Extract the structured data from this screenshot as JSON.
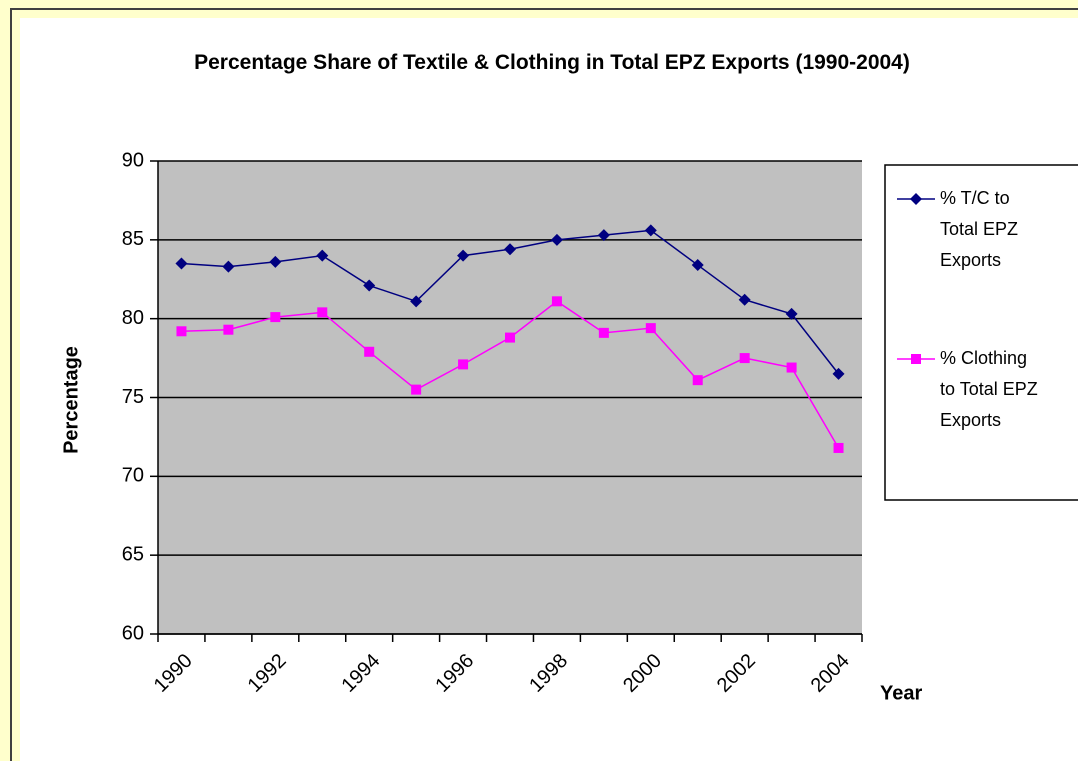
{
  "chart_data": {
    "type": "line",
    "title": "Percentage Share of Textile & Clothing in Total EPZ Exports (1990-2004)",
    "x_label": "Year",
    "y_label": "Percentage",
    "categories": [
      "1990",
      null,
      "1992",
      null,
      "1994",
      null,
      "1996",
      null,
      "1998",
      null,
      "2000",
      null,
      "2002",
      null,
      "2004"
    ],
    "series": [
      {
        "name": "% T/C to Total EPZ Exports",
        "color": "#000080",
        "marker": "diamond",
        "values": [
          83.5,
          83.3,
          83.6,
          84.0,
          82.1,
          81.1,
          84.0,
          84.4,
          85.0,
          85.3,
          85.6,
          83.4,
          81.2,
          80.3,
          76.5
        ]
      },
      {
        "name": "% Clothing to Total EPZ Exports",
        "color": "#ff00ff",
        "marker": "square",
        "values": [
          79.2,
          79.3,
          80.1,
          80.4,
          77.9,
          75.5,
          77.1,
          78.8,
          81.1,
          79.1,
          79.4,
          76.1,
          77.5,
          76.9,
          71.8
        ]
      }
    ],
    "ylim": [
      60,
      90
    ],
    "yticks": [
      60,
      65,
      70,
      75,
      80,
      85,
      90
    ],
    "grid": true,
    "legend": "right",
    "plot_background": "#c0c0c0"
  }
}
